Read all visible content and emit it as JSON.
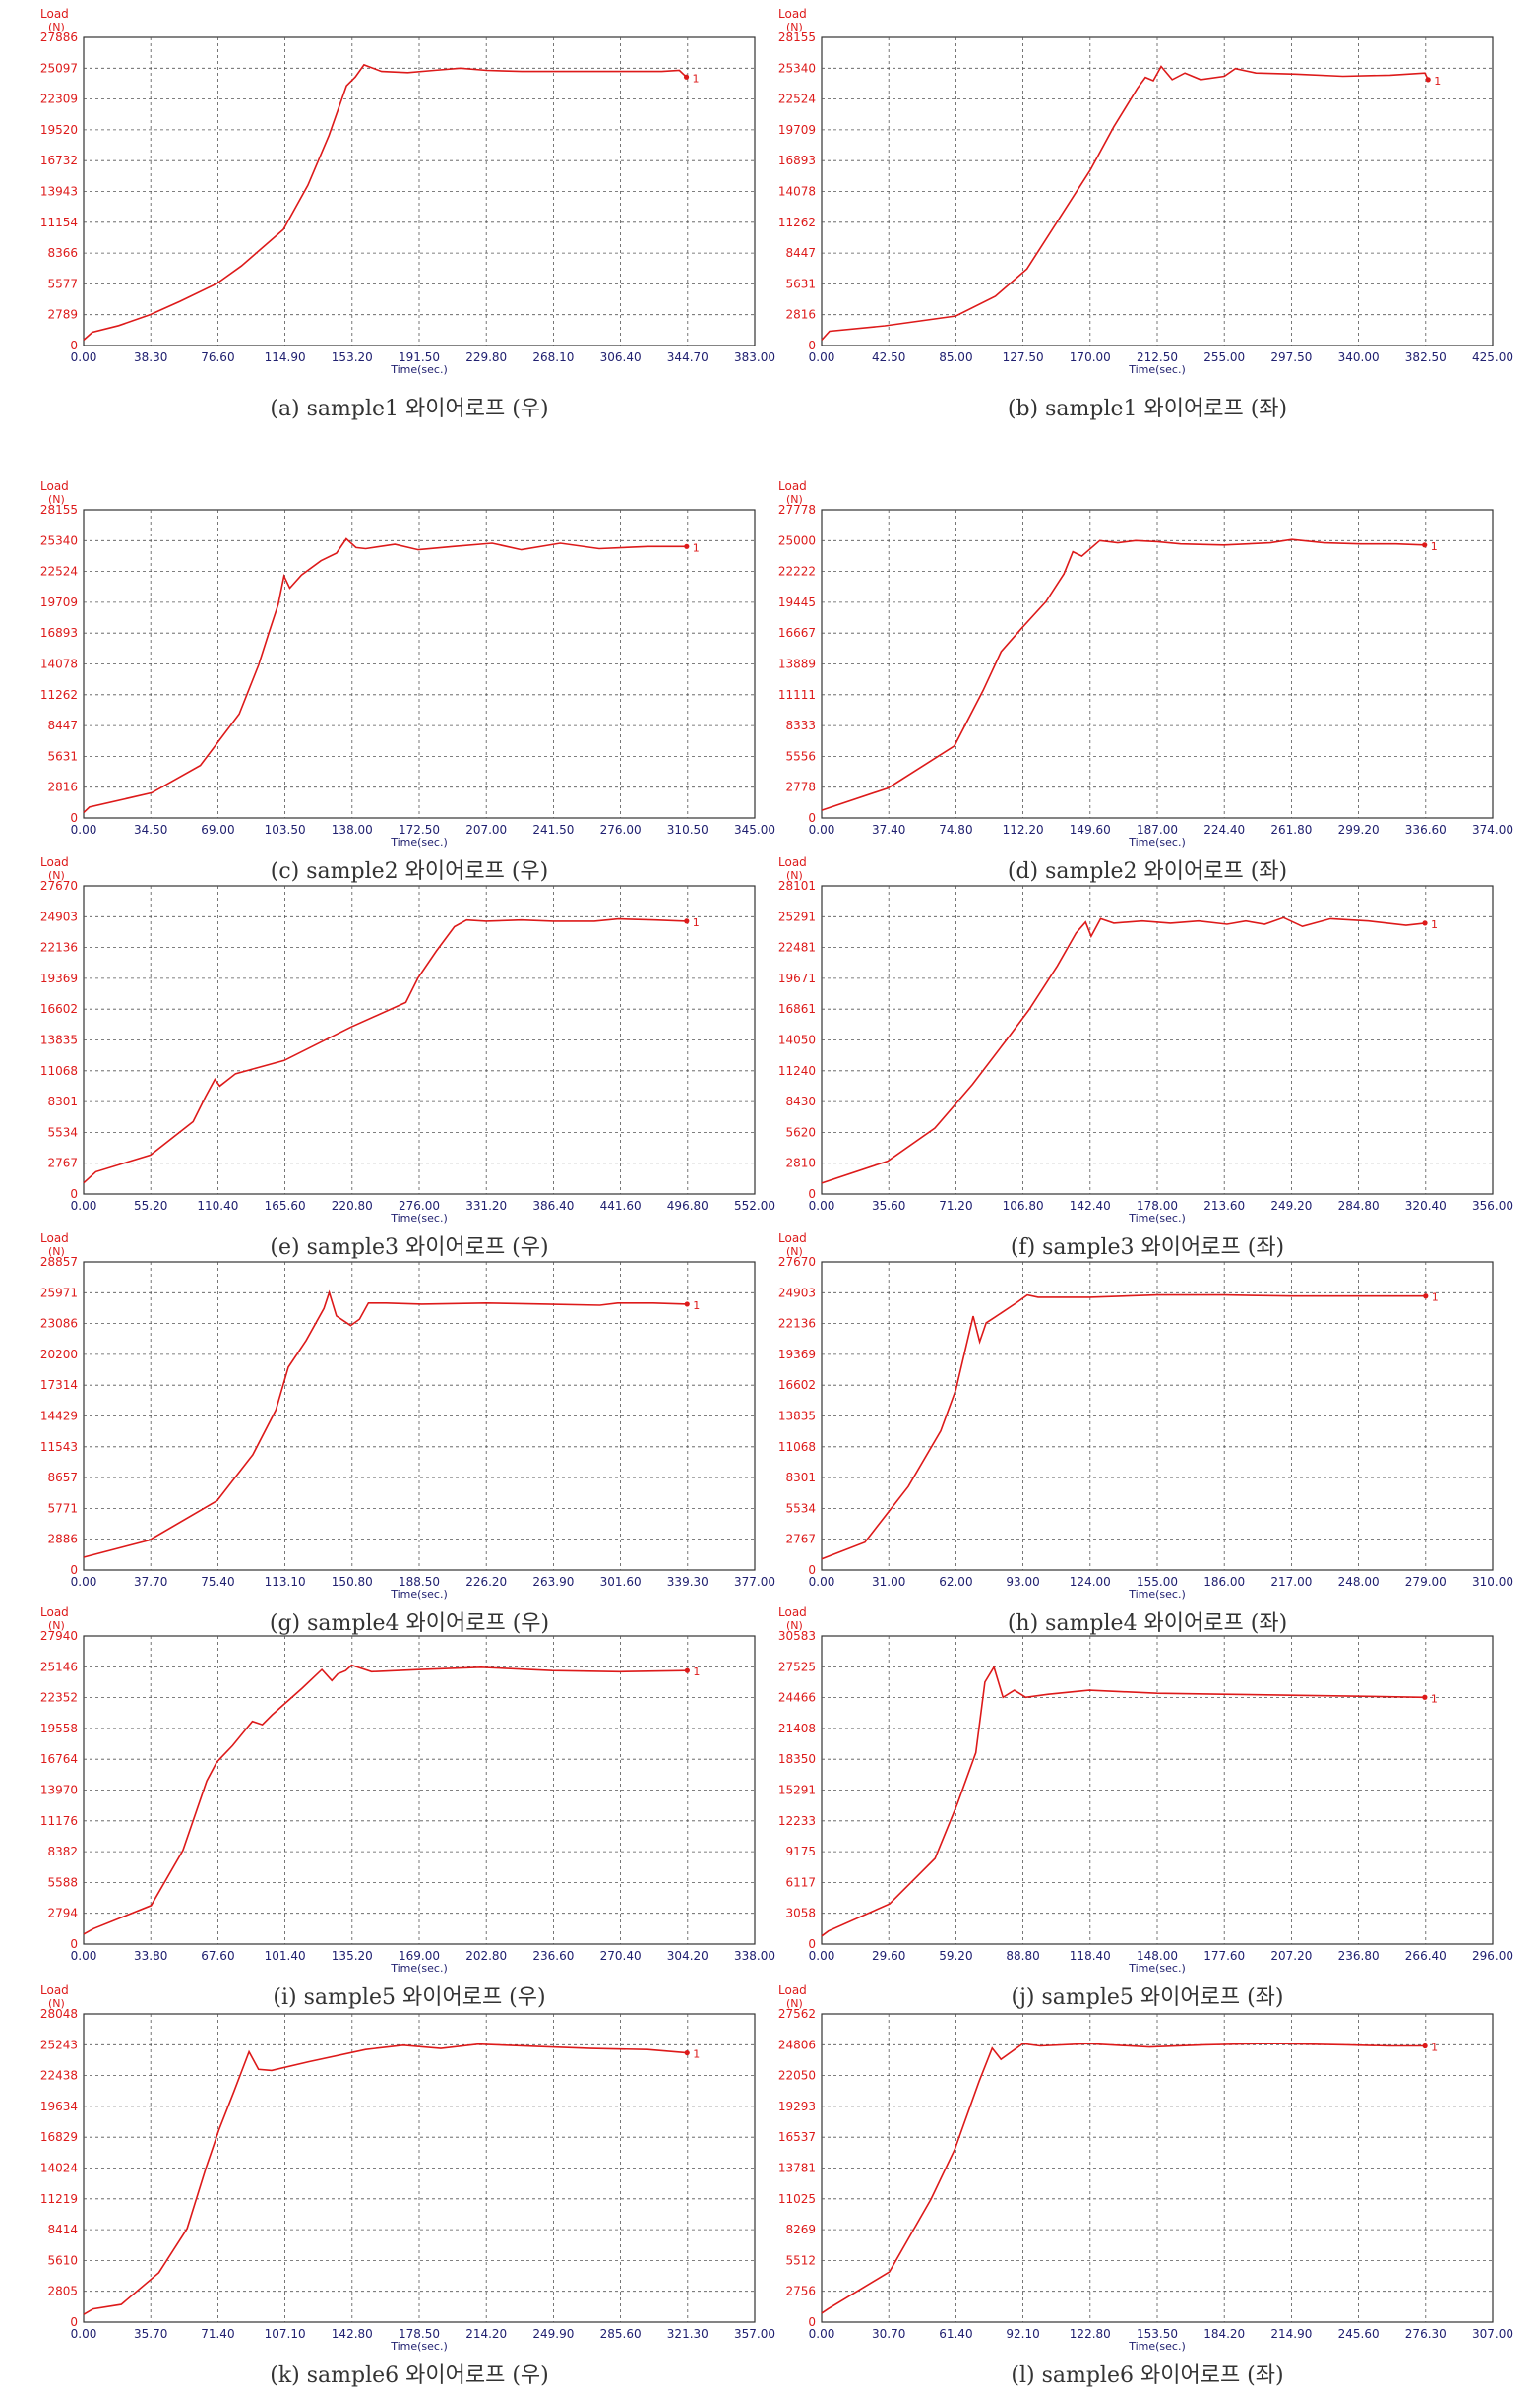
{
  "colors": {
    "line": "#dd1a1a",
    "axis_text_y": "#dd1a1a",
    "axis_text_x": "#202070",
    "grid": "#555555",
    "caption": "#333333"
  },
  "chart_data": [
    {
      "type": "line",
      "caption": "(a)  sample1  와이어로프  (우)",
      "ylabel": "Load",
      "yunit": "(N)",
      "xlabel": "Time(sec.)",
      "yticks": [
        "0",
        "2789",
        "5577",
        "8366",
        "11154",
        "13943",
        "16732",
        "19520",
        "22309",
        "25097",
        "27886"
      ],
      "xticks": [
        "0.00",
        "38.30",
        "76.60",
        "114.90",
        "153.20",
        "191.50",
        "229.80",
        "268.10",
        "306.40",
        "344.70",
        "383.00"
      ],
      "xlim": [
        0,
        383
      ],
      "ylim": [
        0,
        27886
      ],
      "grid": true,
      "end_label": "1",
      "series": [
        {
          "x": [
            0,
            5,
            20,
            38,
            55,
            76,
            90,
            114,
            128,
            140,
            150,
            155,
            160,
            170,
            185,
            200,
            215,
            230,
            250,
            270,
            300,
            330,
            340,
            344
          ],
          "y": [
            500,
            1200,
            1800,
            2800,
            4000,
            5600,
            7200,
            10500,
            14500,
            19000,
            23500,
            24300,
            25400,
            24800,
            24700,
            24900,
            25100,
            24900,
            24800,
            24800,
            24800,
            24800,
            24900,
            24300
          ]
        }
      ]
    },
    {
      "type": "line",
      "caption": "(b)  sample1  와이어로프  (좌)",
      "ylabel": "Load",
      "yunit": "(N)",
      "xlabel": "Time(sec.)",
      "yticks": [
        "0",
        "2816",
        "5631",
        "8447",
        "11262",
        "14078",
        "16893",
        "19709",
        "22524",
        "25340",
        "28155"
      ],
      "xticks": [
        "0.00",
        "42.50",
        "85.00",
        "127.50",
        "170.00",
        "212.50",
        "255.00",
        "297.50",
        "340.00",
        "382.50",
        "425.00"
      ],
      "xlim": [
        0,
        425
      ],
      "ylim": [
        0,
        28155
      ],
      "grid": true,
      "end_label": "1",
      "series": [
        {
          "x": [
            0,
            5,
            40,
            85,
            110,
            130,
            150,
            170,
            185,
            200,
            205,
            210,
            215,
            222,
            230,
            240,
            255,
            262,
            275,
            300,
            330,
            360,
            382,
            384
          ],
          "y": [
            500,
            1300,
            1800,
            2700,
            4500,
            7000,
            11500,
            16000,
            20000,
            23500,
            24500,
            24200,
            25500,
            24300,
            24900,
            24300,
            24600,
            25300,
            24900,
            24800,
            24600,
            24700,
            24900,
            24300
          ]
        }
      ]
    },
    {
      "type": "line",
      "caption": "(c)  sample2  와이어로프  (우)",
      "ylabel": "Load",
      "yunit": "(N)",
      "xlabel": "Time(sec.)",
      "yticks": [
        "0",
        "2816",
        "5631",
        "8447",
        "11262",
        "14078",
        "16893",
        "19709",
        "22524",
        "25340",
        "28155"
      ],
      "xticks": [
        "0.00",
        "34.50",
        "69.00",
        "103.50",
        "138.00",
        "172.50",
        "207.00",
        "241.50",
        "276.00",
        "310.50",
        "345.00"
      ],
      "xlim": [
        0,
        345
      ],
      "ylim": [
        0,
        28155
      ],
      "grid": true,
      "end_label": "1",
      "series": [
        {
          "x": [
            0,
            3,
            35,
            60,
            80,
            90,
            95,
            100,
            103,
            106,
            112,
            122,
            130,
            135,
            140,
            145,
            160,
            172,
            190,
            210,
            225,
            245,
            265,
            290,
            310
          ],
          "y": [
            500,
            1000,
            2300,
            4800,
            9500,
            14000,
            16800,
            19500,
            22100,
            21000,
            22200,
            23500,
            24200,
            25500,
            24700,
            24600,
            25000,
            24500,
            24800,
            25100,
            24500,
            25100,
            24600,
            24800,
            24800
          ]
        }
      ]
    },
    {
      "type": "line",
      "caption": "(d)  sample2  와이어로프  (좌)",
      "ylabel": "Load",
      "yunit": "(N)",
      "xlabel": "Time(sec.)",
      "yticks": [
        "0",
        "2778",
        "5556",
        "8333",
        "11111",
        "13889",
        "16667",
        "19445",
        "22222",
        "25000",
        "27778"
      ],
      "xticks": [
        "0.00",
        "37.40",
        "74.80",
        "112.20",
        "149.60",
        "187.00",
        "224.40",
        "261.80",
        "299.20",
        "336.60",
        "374.00"
      ],
      "xlim": [
        0,
        374
      ],
      "ylim": [
        0,
        27778
      ],
      "grid": true,
      "end_label": "1",
      "series": [
        {
          "x": [
            0,
            37,
            74,
            90,
            100,
            112,
            125,
            135,
            140,
            145,
            155,
            165,
            175,
            187,
            200,
            224,
            250,
            262,
            280,
            300,
            320,
            336
          ],
          "y": [
            700,
            2700,
            6500,
            11500,
            15000,
            17200,
            19500,
            22000,
            24000,
            23600,
            25000,
            24800,
            25000,
            24900,
            24700,
            24600,
            24800,
            25100,
            24800,
            24700,
            24700,
            24600
          ]
        }
      ]
    },
    {
      "type": "line",
      "caption": "(e)  sample3  와이어로프  (우)",
      "ylabel": "Load",
      "yunit": "(N)",
      "xlabel": "Time(sec.)",
      "yticks": [
        "0",
        "2767",
        "5534",
        "8301",
        "11068",
        "13835",
        "16602",
        "19369",
        "22136",
        "24903",
        "27670"
      ],
      "xticks": [
        "0.00",
        "55.20",
        "110.40",
        "165.60",
        "220.80",
        "276.00",
        "331.20",
        "386.40",
        "441.60",
        "496.80",
        "552.00"
      ],
      "xlim": [
        0,
        552
      ],
      "ylim": [
        0,
        27670
      ],
      "grid": true,
      "end_label": "1",
      "series": [
        {
          "x": [
            0,
            10,
            55,
            90,
            100,
            108,
            112,
            125,
            165,
            220,
            265,
            275,
            290,
            305,
            315,
            331,
            360,
            386,
            420,
            440,
            470,
            496
          ],
          "y": [
            1000,
            2000,
            3500,
            6500,
            8700,
            10300,
            9700,
            10800,
            12000,
            15000,
            17200,
            19400,
            21800,
            24000,
            24600,
            24500,
            24600,
            24500,
            24500,
            24700,
            24600,
            24500
          ]
        }
      ]
    },
    {
      "type": "line",
      "caption": "(f)  sample3  와이어로프  (좌)",
      "ylabel": "Load",
      "yunit": "(N)",
      "xlabel": "Time(sec.)",
      "yticks": [
        "0",
        "2810",
        "5620",
        "8430",
        "11240",
        "14050",
        "16861",
        "19671",
        "22481",
        "25291",
        "28101"
      ],
      "xticks": [
        "0.00",
        "35.60",
        "71.20",
        "106.80",
        "142.40",
        "178.00",
        "213.60",
        "249.20",
        "284.80",
        "320.40",
        "356.00"
      ],
      "xlim": [
        0,
        356
      ],
      "ylim": [
        0,
        28101
      ],
      "grid": true,
      "end_label": "1",
      "series": [
        {
          "x": [
            0,
            35,
            60,
            80,
            100,
            110,
            125,
            135,
            140,
            143,
            148,
            155,
            170,
            185,
            200,
            215,
            225,
            235,
            245,
            255,
            270,
            290,
            310,
            320
          ],
          "y": [
            1000,
            3000,
            6000,
            10000,
            14500,
            16800,
            20800,
            23800,
            24800,
            23500,
            25100,
            24700,
            24900,
            24700,
            24900,
            24600,
            24900,
            24600,
            25200,
            24400,
            25100,
            24900,
            24500,
            24700
          ]
        }
      ]
    },
    {
      "type": "line",
      "caption": "(g)  sample4  와이어로프  (우)",
      "ylabel": "Load",
      "yunit": "(N)",
      "xlabel": "Time(sec.)",
      "yticks": [
        "0",
        "2886",
        "5771",
        "8657",
        "11543",
        "14429",
        "17314",
        "20200",
        "23086",
        "25971",
        "28857"
      ],
      "xticks": [
        "0.00",
        "37.70",
        "75.40",
        "113.10",
        "150.80",
        "188.50",
        "226.20",
        "263.90",
        "301.60",
        "339.30",
        "377.00"
      ],
      "xlim": [
        0,
        377
      ],
      "ylim": [
        0,
        28857
      ],
      "grid": true,
      "end_label": "1",
      "series": [
        {
          "x": [
            0,
            37,
            75,
            95,
            108,
            115,
            125,
            135,
            138,
            142,
            150,
            155,
            160,
            170,
            190,
            226,
            260,
            290,
            300,
            320,
            339
          ],
          "y": [
            1200,
            2800,
            6500,
            10800,
            15000,
            19000,
            21500,
            24500,
            26000,
            23800,
            22900,
            23500,
            25000,
            25000,
            24900,
            25000,
            24900,
            24800,
            25000,
            25000,
            24900
          ]
        }
      ]
    },
    {
      "type": "line",
      "caption": "(h)  sample4  와이어로프  (좌)",
      "ylabel": "Load",
      "yunit": "(N)",
      "xlabel": "Time(sec.)",
      "yticks": [
        "0",
        "2767",
        "5534",
        "8301",
        "11068",
        "13835",
        "16602",
        "19369",
        "22136",
        "24903",
        "27670"
      ],
      "xticks": [
        "0.00",
        "31.00",
        "62.00",
        "93.00",
        "124.00",
        "155.00",
        "186.00",
        "217.00",
        "248.00",
        "279.00",
        "310.00"
      ],
      "xlim": [
        0,
        310
      ],
      "ylim": [
        0,
        27670
      ],
      "grid": true,
      "end_label": "1",
      "series": [
        {
          "x": [
            0,
            20,
            40,
            55,
            62,
            70,
            73,
            76,
            80,
            90,
            95,
            100,
            124,
            155,
            186,
            217,
            248,
            279
          ],
          "y": [
            1000,
            2500,
            7500,
            12500,
            16200,
            22800,
            20500,
            22200,
            22700,
            24000,
            24700,
            24500,
            24500,
            24700,
            24700,
            24600,
            24600,
            24600
          ]
        }
      ]
    },
    {
      "type": "line",
      "caption": "(i)  sample5  와이어로프  (우)",
      "ylabel": "Load",
      "yunit": "(N)",
      "xlabel": "Time(sec.)",
      "yticks": [
        "0",
        "2794",
        "5588",
        "8382",
        "11176",
        "13970",
        "16764",
        "19558",
        "22352",
        "25146",
        "27940"
      ],
      "xticks": [
        "0.00",
        "33.80",
        "67.60",
        "101.40",
        "135.20",
        "169.00",
        "202.80",
        "236.60",
        "270.40",
        "304.20",
        "338.00"
      ],
      "xlim": [
        0,
        338
      ],
      "ylim": [
        0,
        27940
      ],
      "grid": true,
      "end_label": "1",
      "series": [
        {
          "x": [
            0,
            5,
            34,
            50,
            62,
            67,
            75,
            85,
            90,
            95,
            110,
            120,
            125,
            128,
            132,
            135,
            145,
            170,
            200,
            236,
            270,
            304
          ],
          "y": [
            900,
            1400,
            3500,
            8500,
            14800,
            16500,
            18000,
            20200,
            19900,
            20800,
            23200,
            24900,
            23900,
            24500,
            24800,
            25300,
            24700,
            24900,
            25100,
            24800,
            24700,
            24800
          ]
        }
      ]
    },
    {
      "type": "line",
      "caption": "(j)  sample5  와이어로프  (좌)",
      "ylabel": "Load",
      "yunit": "(N)",
      "xlabel": "Time(sec.)",
      "yticks": [
        "0",
        "3058",
        "6117",
        "9175",
        "12233",
        "15291",
        "18350",
        "21408",
        "24466",
        "27525",
        "30583"
      ],
      "xticks": [
        "0.00",
        "29.60",
        "59.20",
        "88.80",
        "118.40",
        "148.00",
        "177.60",
        "207.20",
        "236.80",
        "266.40",
        "296.00"
      ],
      "xlim": [
        0,
        296
      ],
      "ylim": [
        0,
        30583
      ],
      "grid": true,
      "end_label": "1",
      "series": [
        {
          "x": [
            0,
            3,
            30,
            50,
            60,
            68,
            72,
            76,
            80,
            85,
            90,
            100,
            118,
            148,
            177,
            207,
            237,
            266
          ],
          "y": [
            800,
            1300,
            4000,
            8500,
            14000,
            19000,
            26000,
            27500,
            24500,
            25200,
            24500,
            24800,
            25200,
            24900,
            24800,
            24700,
            24600,
            24500
          ]
        }
      ]
    },
    {
      "type": "line",
      "caption": "(k)  sample6  와이어로프  (우)",
      "ylabel": "Load",
      "yunit": "(N)",
      "xlabel": "Time(sec.)",
      "yticks": [
        "0",
        "2805",
        "5610",
        "8414",
        "11219",
        "14024",
        "16829",
        "19634",
        "22438",
        "25243",
        "28048"
      ],
      "xticks": [
        "0.00",
        "35.70",
        "71.40",
        "107.10",
        "142.80",
        "178.50",
        "214.20",
        "249.90",
        "285.60",
        "321.30",
        "357.00"
      ],
      "xlim": [
        0,
        357
      ],
      "ylim": [
        0,
        28048
      ],
      "grid": true,
      "end_label": "1",
      "series": [
        {
          "x": [
            0,
            5,
            20,
            40,
            55,
            65,
            72,
            80,
            88,
            93,
            100,
            120,
            150,
            170,
            190,
            210,
            240,
            270,
            300,
            321
          ],
          "y": [
            700,
            1200,
            1600,
            4500,
            8500,
            14000,
            17500,
            21000,
            24600,
            23000,
            22900,
            23700,
            24800,
            25200,
            24900,
            25300,
            25100,
            24900,
            24800,
            24500
          ]
        }
      ]
    },
    {
      "type": "line",
      "caption": "(l)  sample6  와이어로프  (좌)",
      "ylabel": "Load",
      "yunit": "(N)",
      "xlabel": "Time(sec.)",
      "yticks": [
        "0",
        "2756",
        "5512",
        "8269",
        "11025",
        "13781",
        "16537",
        "19293",
        "22050",
        "24806",
        "27562"
      ],
      "xticks": [
        "0.00",
        "30.70",
        "61.40",
        "92.10",
        "122.80",
        "153.50",
        "184.20",
        "214.90",
        "245.60",
        "276.30",
        "307.00"
      ],
      "xlim": [
        0,
        307
      ],
      "ylim": [
        0,
        27562
      ],
      "grid": true,
      "end_label": "1",
      "series": [
        {
          "x": [
            0,
            3,
            31,
            50,
            61,
            72,
            78,
            82,
            92,
            100,
            122,
            150,
            175,
            200,
            210,
            240,
            260,
            276
          ],
          "y": [
            800,
            1200,
            4500,
            11000,
            15500,
            21500,
            24500,
            23500,
            24900,
            24700,
            24900,
            24600,
            24800,
            24900,
            24900,
            24800,
            24700,
            24700
          ]
        }
      ]
    }
  ]
}
